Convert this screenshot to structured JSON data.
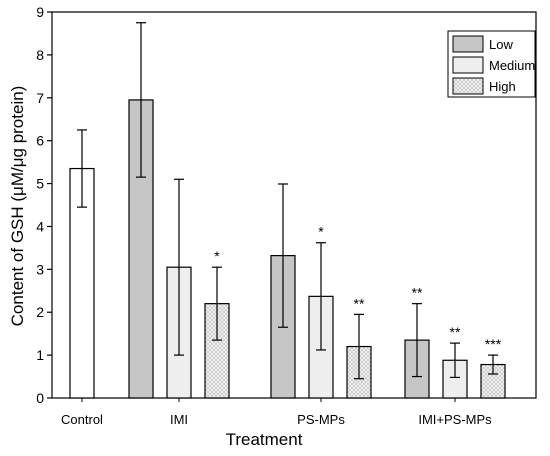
{
  "chart_data": {
    "type": "bar",
    "xlabel": "Treatment",
    "ylabel": "Content of GSH (μM/μg protein)",
    "ylim": [
      0,
      9
    ],
    "yticks": [
      "0",
      "1",
      "2",
      "3",
      "4",
      "5",
      "6",
      "7",
      "8",
      "9"
    ],
    "grid": false,
    "legend_position": "top-right",
    "categories": [
      "Control",
      "IMI",
      "PS-MPs",
      "IMI+PS-MPs"
    ],
    "series": [
      {
        "name": "Low",
        "fill": "#c6c6c6",
        "pattern": "none"
      },
      {
        "name": "Medium",
        "fill": "#eeeeee",
        "pattern": "none"
      },
      {
        "name": "High",
        "fill": "#f2f2f2",
        "pattern": "crosshatch"
      }
    ],
    "control_bar": {
      "value": 5.35,
      "error": 0.9,
      "fill": "#ffffff",
      "significance": ""
    },
    "bars": [
      {
        "category": "IMI",
        "series": "Low",
        "value": 6.95,
        "error": 1.8,
        "significance": ""
      },
      {
        "category": "IMI",
        "series": "Medium",
        "value": 3.05,
        "error": 2.05,
        "significance": ""
      },
      {
        "category": "IMI",
        "series": "High",
        "value": 2.2,
        "error": 0.85,
        "significance": "*"
      },
      {
        "category": "PS-MPs",
        "series": "Low",
        "value": 3.32,
        "error": 1.67,
        "significance": ""
      },
      {
        "category": "PS-MPs",
        "series": "Medium",
        "value": 2.37,
        "error": 1.25,
        "significance": "*"
      },
      {
        "category": "PS-MPs",
        "series": "High",
        "value": 1.2,
        "error": 0.75,
        "significance": "**"
      },
      {
        "category": "IMI+PS-MPs",
        "series": "Low",
        "value": 1.35,
        "error": 0.85,
        "significance": "**"
      },
      {
        "category": "IMI+PS-MPs",
        "series": "Medium",
        "value": 0.88,
        "error": 0.4,
        "significance": "**"
      },
      {
        "category": "IMI+PS-MPs",
        "series": "High",
        "value": 0.78,
        "error": 0.22,
        "significance": "***"
      }
    ]
  }
}
